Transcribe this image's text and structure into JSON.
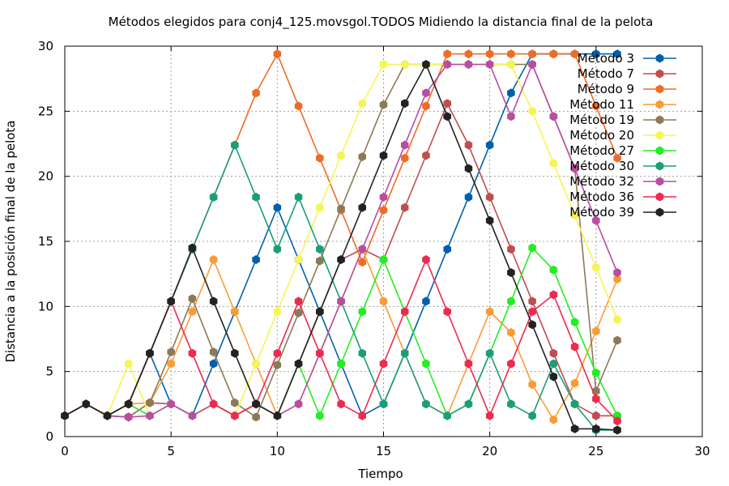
{
  "chart_data": {
    "type": "line",
    "title": "Métodos elegidos para conj4_125.movsgol.TODOS Midiendo la distancia final de la pelota",
    "xlabel": "Tiempo",
    "ylabel": "Distancia a la posición final de la pelota",
    "xlim": [
      0,
      30
    ],
    "ylim": [
      0,
      30
    ],
    "xticks": [
      0,
      5,
      10,
      15,
      20,
      25,
      30
    ],
    "yticks": [
      0,
      5,
      10,
      15,
      20,
      25,
      30
    ],
    "grid": true,
    "legend_position": "top-right",
    "series": [
      {
        "name": "Método 3",
        "color": "#0060ad",
        "points": [
          [
            0,
            1.6
          ],
          [
            1,
            2.5
          ],
          [
            2,
            1.6
          ],
          [
            3,
            2.5
          ],
          [
            4,
            6.4
          ],
          [
            5,
            2.5
          ],
          [
            6,
            1.6
          ],
          [
            7,
            5.6
          ],
          [
            8,
            9.6
          ],
          [
            9,
            13.6
          ],
          [
            10,
            17.6
          ],
          [
            11,
            13.6
          ],
          [
            12,
            9.6
          ],
          [
            13,
            5.6
          ],
          [
            14,
            1.6
          ],
          [
            15,
            2.5
          ],
          [
            16,
            6.4
          ],
          [
            17,
            10.4
          ],
          [
            18,
            14.4
          ],
          [
            19,
            18.4
          ],
          [
            20,
            22.4
          ],
          [
            21,
            26.4
          ],
          [
            22,
            29.4
          ],
          [
            23,
            29.4
          ],
          [
            24,
            29.4
          ],
          [
            25,
            29.4
          ],
          [
            26,
            29.4
          ]
        ]
      },
      {
        "name": "Método 7",
        "color": "#c14d4d",
        "points": [
          [
            0,
            1.6
          ],
          [
            1,
            2.5
          ],
          [
            2,
            1.6
          ],
          [
            3,
            1.5
          ],
          [
            4,
            2.6
          ],
          [
            5,
            2.5
          ],
          [
            6,
            1.6
          ],
          [
            7,
            2.5
          ],
          [
            8,
            1.6
          ],
          [
            9,
            2.5
          ],
          [
            10,
            1.6
          ],
          [
            11,
            5.6
          ],
          [
            12,
            9.6
          ],
          [
            13,
            13.6
          ],
          [
            14,
            14.4
          ],
          [
            15,
            13.6
          ],
          [
            16,
            17.6
          ],
          [
            17,
            21.6
          ],
          [
            18,
            25.6
          ],
          [
            19,
            22.4
          ],
          [
            20,
            18.4
          ],
          [
            21,
            14.4
          ],
          [
            22,
            10.4
          ],
          [
            23,
            6.4
          ],
          [
            24,
            2.5
          ],
          [
            25,
            1.6
          ],
          [
            26,
            1.6
          ]
        ]
      },
      {
        "name": "Método 9",
        "color": "#ef6c27",
        "points": [
          [
            0,
            1.6
          ],
          [
            1,
            2.5
          ],
          [
            2,
            1.6
          ],
          [
            3,
            2.5
          ],
          [
            4,
            6.4
          ],
          [
            5,
            10.4
          ],
          [
            6,
            14.4
          ],
          [
            7,
            18.4
          ],
          [
            8,
            22.4
          ],
          [
            9,
            26.4
          ],
          [
            10,
            29.4
          ],
          [
            11,
            25.4
          ],
          [
            12,
            21.4
          ],
          [
            13,
            17.4
          ],
          [
            14,
            13.4
          ],
          [
            15,
            17.4
          ],
          [
            16,
            21.4
          ],
          [
            17,
            25.4
          ],
          [
            18,
            29.4
          ],
          [
            19,
            29.4
          ],
          [
            20,
            29.4
          ],
          [
            21,
            29.4
          ],
          [
            22,
            29.4
          ],
          [
            23,
            29.4
          ],
          [
            24,
            29.4
          ],
          [
            25,
            25.4
          ],
          [
            26,
            21.4
          ]
        ]
      },
      {
        "name": "Método 11",
        "color": "#f89c38",
        "points": [
          [
            0,
            1.6
          ],
          [
            1,
            2.5
          ],
          [
            2,
            1.6
          ],
          [
            3,
            2.5
          ],
          [
            4,
            2.6
          ],
          [
            5,
            5.6
          ],
          [
            6,
            9.6
          ],
          [
            7,
            13.6
          ],
          [
            8,
            9.6
          ],
          [
            9,
            5.6
          ],
          [
            10,
            1.6
          ],
          [
            11,
            2.5
          ],
          [
            12,
            6.4
          ],
          [
            13,
            10.4
          ],
          [
            14,
            14.4
          ],
          [
            15,
            10.4
          ],
          [
            16,
            6.4
          ],
          [
            17,
            2.5
          ],
          [
            18,
            1.6
          ],
          [
            19,
            5.6
          ],
          [
            20,
            9.6
          ],
          [
            21,
            8.0
          ],
          [
            22,
            4.0
          ],
          [
            23,
            1.3
          ],
          [
            24,
            4.1
          ],
          [
            25,
            8.1
          ],
          [
            26,
            12.1
          ]
        ]
      },
      {
        "name": "Método 19",
        "color": "#8c7a56",
        "points": [
          [
            0,
            1.6
          ],
          [
            1,
            2.5
          ],
          [
            2,
            1.6
          ],
          [
            3,
            1.5
          ],
          [
            4,
            2.6
          ],
          [
            5,
            6.5
          ],
          [
            6,
            10.6
          ],
          [
            7,
            6.5
          ],
          [
            8,
            2.6
          ],
          [
            9,
            1.5
          ],
          [
            10,
            5.5
          ],
          [
            11,
            9.5
          ],
          [
            12,
            13.5
          ],
          [
            13,
            17.5
          ],
          [
            14,
            21.5
          ],
          [
            15,
            25.5
          ],
          [
            16,
            28.6
          ],
          [
            17,
            28.6
          ],
          [
            18,
            28.6
          ],
          [
            19,
            28.6
          ],
          [
            20,
            28.6
          ],
          [
            21,
            28.6
          ],
          [
            22,
            28.6
          ],
          [
            23,
            24.6
          ],
          [
            24,
            20.6
          ],
          [
            25,
            3.5
          ],
          [
            26,
            7.4
          ]
        ]
      },
      {
        "name": "Método 20",
        "color": "#f5f555",
        "points": [
          [
            0,
            1.6
          ],
          [
            1,
            2.5
          ],
          [
            2,
            1.6
          ],
          [
            3,
            5.6
          ],
          [
            4,
            1.6
          ],
          [
            5,
            2.5
          ],
          [
            6,
            1.6
          ],
          [
            7,
            2.5
          ],
          [
            8,
            1.6
          ],
          [
            9,
            5.6
          ],
          [
            10,
            9.6
          ],
          [
            11,
            13.6
          ],
          [
            12,
            17.6
          ],
          [
            13,
            21.6
          ],
          [
            14,
            25.6
          ],
          [
            15,
            28.6
          ],
          [
            16,
            28.6
          ],
          [
            17,
            28.6
          ],
          [
            18,
            28.6
          ],
          [
            19,
            28.6
          ],
          [
            20,
            28.6
          ],
          [
            21,
            28.6
          ],
          [
            22,
            25.0
          ],
          [
            23,
            21.0
          ],
          [
            24,
            17.0
          ],
          [
            25,
            13.0
          ],
          [
            26,
            9.0
          ]
        ]
      },
      {
        "name": "Método 27",
        "color": "#22ee22",
        "points": [
          [
            0,
            1.6
          ],
          [
            1,
            2.5
          ],
          [
            2,
            1.6
          ],
          [
            3,
            2.5
          ],
          [
            4,
            1.6
          ],
          [
            5,
            2.5
          ],
          [
            6,
            1.6
          ],
          [
            7,
            2.5
          ],
          [
            8,
            1.6
          ],
          [
            9,
            2.5
          ],
          [
            10,
            1.6
          ],
          [
            11,
            5.6
          ],
          [
            12,
            1.6
          ],
          [
            13,
            5.6
          ],
          [
            14,
            9.6
          ],
          [
            15,
            13.6
          ],
          [
            16,
            9.6
          ],
          [
            17,
            5.6
          ],
          [
            18,
            1.6
          ],
          [
            19,
            2.5
          ],
          [
            20,
            6.4
          ],
          [
            21,
            10.4
          ],
          [
            22,
            14.5
          ],
          [
            23,
            12.8
          ],
          [
            24,
            8.8
          ],
          [
            25,
            4.9
          ],
          [
            26,
            1.6
          ]
        ]
      },
      {
        "name": "Método 30",
        "color": "#1b9e77",
        "points": [
          [
            0,
            1.6
          ],
          [
            1,
            2.5
          ],
          [
            2,
            1.6
          ],
          [
            3,
            2.5
          ],
          [
            4,
            6.4
          ],
          [
            5,
            10.4
          ],
          [
            6,
            14.4
          ],
          [
            7,
            18.4
          ],
          [
            8,
            22.4
          ],
          [
            9,
            18.4
          ],
          [
            10,
            14.4
          ],
          [
            11,
            18.4
          ],
          [
            12,
            14.4
          ],
          [
            13,
            10.4
          ],
          [
            14,
            6.4
          ],
          [
            15,
            2.5
          ],
          [
            16,
            6.4
          ],
          [
            17,
            2.5
          ],
          [
            18,
            1.6
          ],
          [
            19,
            2.5
          ],
          [
            20,
            6.4
          ],
          [
            21,
            2.5
          ],
          [
            22,
            1.6
          ],
          [
            23,
            5.6
          ],
          [
            24,
            2.5
          ],
          [
            25,
            0.5
          ],
          [
            26,
            0.5
          ]
        ]
      },
      {
        "name": "Método 32",
        "color": "#b94da0",
        "points": [
          [
            0,
            1.6
          ],
          [
            1,
            2.5
          ],
          [
            2,
            1.6
          ],
          [
            3,
            1.5
          ],
          [
            4,
            1.6
          ],
          [
            5,
            2.5
          ],
          [
            6,
            1.6
          ],
          [
            7,
            2.5
          ],
          [
            8,
            1.6
          ],
          [
            9,
            2.5
          ],
          [
            10,
            1.6
          ],
          [
            11,
            2.5
          ],
          [
            12,
            6.4
          ],
          [
            13,
            10.4
          ],
          [
            14,
            14.4
          ],
          [
            15,
            18.4
          ],
          [
            16,
            22.4
          ],
          [
            17,
            26.4
          ],
          [
            18,
            28.6
          ],
          [
            19,
            28.6
          ],
          [
            20,
            28.6
          ],
          [
            21,
            24.6
          ],
          [
            22,
            28.6
          ],
          [
            23,
            24.6
          ],
          [
            24,
            20.6
          ],
          [
            25,
            16.6
          ],
          [
            26,
            12.6
          ]
        ]
      },
      {
        "name": "Método 36",
        "color": "#ee2a4f",
        "points": [
          [
            0,
            1.6
          ],
          [
            1,
            2.5
          ],
          [
            2,
            1.6
          ],
          [
            3,
            2.5
          ],
          [
            4,
            6.4
          ],
          [
            5,
            10.4
          ],
          [
            6,
            6.4
          ],
          [
            7,
            2.5
          ],
          [
            8,
            1.6
          ],
          [
            9,
            2.5
          ],
          [
            10,
            6.4
          ],
          [
            11,
            10.4
          ],
          [
            12,
            6.4
          ],
          [
            13,
            2.5
          ],
          [
            14,
            1.6
          ],
          [
            15,
            5.6
          ],
          [
            16,
            9.6
          ],
          [
            17,
            13.6
          ],
          [
            18,
            9.6
          ],
          [
            19,
            5.6
          ],
          [
            20,
            1.6
          ],
          [
            21,
            5.6
          ],
          [
            22,
            9.6
          ],
          [
            23,
            10.9
          ],
          [
            24,
            6.9
          ],
          [
            25,
            2.9
          ],
          [
            26,
            1.2
          ]
        ]
      },
      {
        "name": "Método 39",
        "color": "#222222",
        "points": [
          [
            0,
            1.6
          ],
          [
            1,
            2.5
          ],
          [
            2,
            1.6
          ],
          [
            3,
            2.5
          ],
          [
            4,
            6.4
          ],
          [
            5,
            10.4
          ],
          [
            6,
            14.5
          ],
          [
            7,
            10.4
          ],
          [
            8,
            6.4
          ],
          [
            9,
            2.5
          ],
          [
            10,
            1.6
          ],
          [
            11,
            5.6
          ],
          [
            12,
            9.6
          ],
          [
            13,
            13.6
          ],
          [
            14,
            17.6
          ],
          [
            15,
            21.6
          ],
          [
            16,
            25.6
          ],
          [
            17,
            28.6
          ],
          [
            18,
            24.6
          ],
          [
            19,
            20.6
          ],
          [
            20,
            16.6
          ],
          [
            21,
            12.6
          ],
          [
            22,
            8.6
          ],
          [
            23,
            4.6
          ],
          [
            24,
            0.6
          ],
          [
            25,
            0.6
          ],
          [
            26,
            0.5
          ]
        ]
      }
    ]
  }
}
